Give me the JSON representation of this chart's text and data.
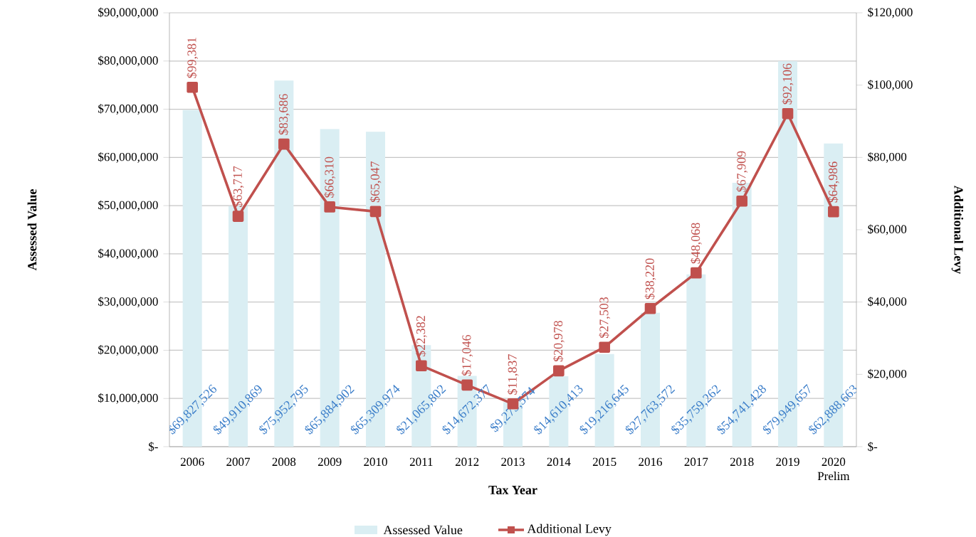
{
  "chart_data": {
    "type": "bar",
    "xlabel": "Tax Year",
    "ylabel": "Assessed Value",
    "y2label": "Additional Levy",
    "categories": [
      "2006",
      "2007",
      "2008",
      "2009",
      "2010",
      "2011",
      "2012",
      "2013",
      "2014",
      "2015",
      "2016",
      "2017",
      "2018",
      "2019",
      "2020 Prelim"
    ],
    "series": [
      {
        "name": "Assessed Value",
        "color": "#daeef3",
        "values": [
          69827526,
          49910869,
          75952795,
          65884902,
          65309974,
          21065802,
          14672377,
          9273574,
          14610413,
          19216645,
          27763572,
          35759262,
          54741428,
          79949657,
          62888663
        ],
        "value_labels": [
          "$69,827,526",
          "$49,910,869",
          "$75,952,795",
          "$65,884,902",
          "$65,309,974",
          "$21,065,802",
          "$14,672,377",
          "$9,273,574",
          "$14,610,413",
          "$19,216,645",
          "$27,763,572",
          "$35,759,262",
          "$54,741,428",
          "$79,949,657",
          "$62,888,663"
        ]
      },
      {
        "name": "Additional Levy",
        "type": "line",
        "axis": "y2",
        "color": "#c0504d",
        "values": [
          99381,
          63717,
          83686,
          66310,
          65047,
          22382,
          17046,
          11837,
          20978,
          27503,
          38220,
          48068,
          67909,
          92106,
          64986
        ],
        "value_labels": [
          "$99,381",
          "$63,717",
          "$83,686",
          "$66,310",
          "$65,047",
          "$22,382",
          "$17,046",
          "$11,837",
          "$20,978",
          "$27,503",
          "$38,220",
          "$48,068",
          "$67,909",
          "$92,106",
          "$64,986"
        ]
      }
    ],
    "ylim": [
      0,
      90000000
    ],
    "yticks": [
      {
        "value": 0,
        "label": "$-"
      },
      {
        "value": 10000000,
        "label": "$10,000,000"
      },
      {
        "value": 20000000,
        "label": "$20,000,000"
      },
      {
        "value": 30000000,
        "label": "$30,000,000"
      },
      {
        "value": 40000000,
        "label": "$40,000,000"
      },
      {
        "value": 50000000,
        "label": "$50,000,000"
      },
      {
        "value": 60000000,
        "label": "$60,000,000"
      },
      {
        "value": 70000000,
        "label": "$70,000,000"
      },
      {
        "value": 80000000,
        "label": "$80,000,000"
      },
      {
        "value": 90000000,
        "label": "$90,000,000"
      }
    ],
    "y2lim": [
      0,
      120000
    ],
    "y2ticks": [
      {
        "value": 0,
        "label": "$-"
      },
      {
        "value": 20000,
        "label": "$20,000"
      },
      {
        "value": 40000,
        "label": "$40,000"
      },
      {
        "value": 60000,
        "label": "$60,000"
      },
      {
        "value": 80000,
        "label": "$80,000"
      },
      {
        "value": 100000,
        "label": "$100,000"
      },
      {
        "value": 120000,
        "label": "$120,000"
      }
    ],
    "grid": "y",
    "legend": "bottom",
    "marker": "square",
    "line_style": "solid"
  }
}
